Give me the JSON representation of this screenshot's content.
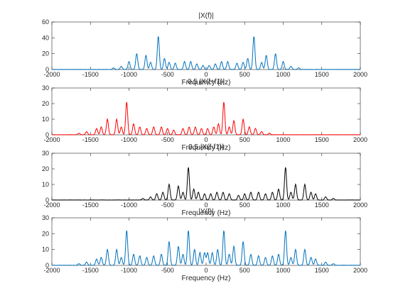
{
  "chart_data": [
    {
      "type": "line",
      "title": "|X(f)|",
      "xlabel": "Frequency (Hz)",
      "ylabel": "",
      "xlim": [
        -2000,
        2000
      ],
      "ylim": [
        0,
        60
      ],
      "xticks": [
        -2000,
        -1500,
        -1000,
        -500,
        0,
        500,
        1000,
        1500,
        2000
      ],
      "yticks": [
        0,
        20,
        40,
        60
      ],
      "color": "#0072bd",
      "grid": false,
      "peaks": [
        {
          "f": -1000,
          "v": 10
        },
        {
          "f": -900,
          "v": 20
        },
        {
          "f": -780,
          "v": 18
        },
        {
          "f": -720,
          "v": 9
        },
        {
          "f": -620,
          "v": 42
        },
        {
          "f": -540,
          "v": 14
        },
        {
          "f": -480,
          "v": 9
        },
        {
          "f": -400,
          "v": 8
        },
        {
          "f": -280,
          "v": 10
        },
        {
          "f": -200,
          "v": 10
        },
        {
          "f": -120,
          "v": 7
        },
        {
          "f": -40,
          "v": 5
        },
        {
          "f": 40,
          "v": 5
        },
        {
          "f": 120,
          "v": 7
        },
        {
          "f": 200,
          "v": 10
        },
        {
          "f": 280,
          "v": 10
        },
        {
          "f": 400,
          "v": 8
        },
        {
          "f": 480,
          "v": 9
        },
        {
          "f": 540,
          "v": 14
        },
        {
          "f": 620,
          "v": 42
        },
        {
          "f": 720,
          "v": 9
        },
        {
          "f": 780,
          "v": 18
        },
        {
          "f": 900,
          "v": 20
        },
        {
          "f": 1000,
          "v": 10
        },
        {
          "f": -1100,
          "v": 4
        },
        {
          "f": -1200,
          "v": 2
        },
        {
          "f": 1100,
          "v": 4
        },
        {
          "f": 1200,
          "v": 2
        }
      ]
    },
    {
      "type": "line",
      "title": "0.5 |X(f+f1)|",
      "xlabel": "Frequency (Hz)",
      "ylabel": "",
      "xlim": [
        -2000,
        2000
      ],
      "ylim": [
        0,
        30
      ],
      "xticks": [
        -2000,
        -1500,
        -1000,
        -500,
        0,
        500,
        1000,
        1500,
        2000
      ],
      "yticks": [
        0,
        10,
        20,
        30
      ],
      "color": "#ff0000",
      "grid": false,
      "peaks": [
        {
          "f": -1650,
          "v": 1
        },
        {
          "f": -1550,
          "v": 2
        },
        {
          "f": -1420,
          "v": 4
        },
        {
          "f": -1360,
          "v": 5
        },
        {
          "f": -1280,
          "v": 10
        },
        {
          "f": -1160,
          "v": 10
        },
        {
          "f": -1100,
          "v": 5
        },
        {
          "f": -1030,
          "v": 21
        },
        {
          "f": -940,
          "v": 7
        },
        {
          "f": -860,
          "v": 5
        },
        {
          "f": -770,
          "v": 4
        },
        {
          "f": -680,
          "v": 5
        },
        {
          "f": -580,
          "v": 5
        },
        {
          "f": -500,
          "v": 4
        },
        {
          "f": -420,
          "v": 3
        },
        {
          "f": -300,
          "v": 4
        },
        {
          "f": -220,
          "v": 5
        },
        {
          "f": -140,
          "v": 5
        },
        {
          "f": -60,
          "v": 4
        },
        {
          "f": 20,
          "v": 4
        },
        {
          "f": 100,
          "v": 5
        },
        {
          "f": 160,
          "v": 7
        },
        {
          "f": 230,
          "v": 21
        },
        {
          "f": 300,
          "v": 5
        },
        {
          "f": 360,
          "v": 9
        },
        {
          "f": 480,
          "v": 10
        },
        {
          "f": 560,
          "v": 5
        },
        {
          "f": 640,
          "v": 4
        },
        {
          "f": 720,
          "v": 2
        },
        {
          "f": 820,
          "v": 1
        }
      ]
    },
    {
      "type": "line",
      "title": "0.5 |X(f-f1)|",
      "xlabel": "Frequency (Hz)",
      "ylabel": "",
      "xlim": [
        -2000,
        2000
      ],
      "ylim": [
        0,
        30
      ],
      "xticks": [
        -2000,
        -1500,
        -1000,
        -500,
        0,
        500,
        1000,
        1500,
        2000
      ],
      "yticks": [
        0,
        10,
        20,
        30
      ],
      "color": "#000000",
      "grid": false,
      "peaks": [
        {
          "f": -820,
          "v": 1
        },
        {
          "f": -720,
          "v": 2
        },
        {
          "f": -640,
          "v": 4
        },
        {
          "f": -560,
          "v": 5
        },
        {
          "f": -480,
          "v": 10
        },
        {
          "f": -360,
          "v": 9
        },
        {
          "f": -300,
          "v": 5
        },
        {
          "f": -230,
          "v": 21
        },
        {
          "f": -160,
          "v": 7
        },
        {
          "f": -100,
          "v": 5
        },
        {
          "f": -20,
          "v": 4
        },
        {
          "f": 60,
          "v": 4
        },
        {
          "f": 140,
          "v": 5
        },
        {
          "f": 220,
          "v": 5
        },
        {
          "f": 300,
          "v": 4
        },
        {
          "f": 420,
          "v": 3
        },
        {
          "f": 500,
          "v": 4
        },
        {
          "f": 580,
          "v": 5
        },
        {
          "f": 680,
          "v": 5
        },
        {
          "f": 770,
          "v": 4
        },
        {
          "f": 860,
          "v": 5
        },
        {
          "f": 940,
          "v": 7
        },
        {
          "f": 1030,
          "v": 21
        },
        {
          "f": 1100,
          "v": 5
        },
        {
          "f": 1160,
          "v": 10
        },
        {
          "f": 1280,
          "v": 10
        },
        {
          "f": 1360,
          "v": 5
        },
        {
          "f": 1420,
          "v": 4
        },
        {
          "f": 1550,
          "v": 2
        },
        {
          "f": 1650,
          "v": 1
        }
      ]
    },
    {
      "type": "line",
      "title": "|Y(f)|",
      "xlabel": "Frequency (Hz)",
      "ylabel": "",
      "xlim": [
        -2000,
        2000
      ],
      "ylim": [
        0,
        30
      ],
      "xticks": [
        -2000,
        -1500,
        -1000,
        -500,
        0,
        500,
        1000,
        1500,
        2000
      ],
      "yticks": [
        0,
        10,
        20,
        30
      ],
      "color": "#0072bd",
      "grid": false,
      "peaks": [
        {
          "f": -1650,
          "v": 1
        },
        {
          "f": -1550,
          "v": 2
        },
        {
          "f": -1420,
          "v": 4
        },
        {
          "f": -1360,
          "v": 5
        },
        {
          "f": -1280,
          "v": 10
        },
        {
          "f": -1160,
          "v": 10
        },
        {
          "f": -1100,
          "v": 5
        },
        {
          "f": -1030,
          "v": 22
        },
        {
          "f": -940,
          "v": 7
        },
        {
          "f": -860,
          "v": 6
        },
        {
          "f": -770,
          "v": 5
        },
        {
          "f": -680,
          "v": 6
        },
        {
          "f": -580,
          "v": 7
        },
        {
          "f": -480,
          "v": 15
        },
        {
          "f": -360,
          "v": 12
        },
        {
          "f": -300,
          "v": 7
        },
        {
          "f": -230,
          "v": 22
        },
        {
          "f": -150,
          "v": 10
        },
        {
          "f": -80,
          "v": 8
        },
        {
          "f": -20,
          "v": 8
        },
        {
          "f": 20,
          "v": 8
        },
        {
          "f": 80,
          "v": 8
        },
        {
          "f": 150,
          "v": 10
        },
        {
          "f": 230,
          "v": 22
        },
        {
          "f": 300,
          "v": 7
        },
        {
          "f": 360,
          "v": 12
        },
        {
          "f": 480,
          "v": 15
        },
        {
          "f": 580,
          "v": 7
        },
        {
          "f": 680,
          "v": 6
        },
        {
          "f": 770,
          "v": 5
        },
        {
          "f": 860,
          "v": 6
        },
        {
          "f": 940,
          "v": 7
        },
        {
          "f": 1030,
          "v": 22
        },
        {
          "f": 1100,
          "v": 5
        },
        {
          "f": 1160,
          "v": 10
        },
        {
          "f": 1280,
          "v": 10
        },
        {
          "f": 1360,
          "v": 5
        },
        {
          "f": 1420,
          "v": 4
        },
        {
          "f": 1550,
          "v": 2
        },
        {
          "f": 1650,
          "v": 1
        }
      ]
    }
  ]
}
